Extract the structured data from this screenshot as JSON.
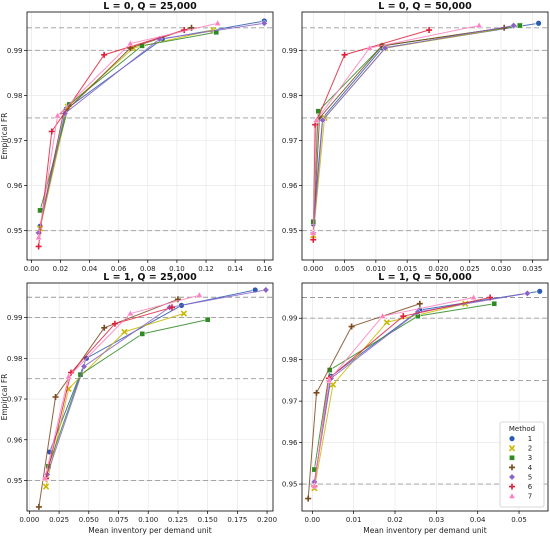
{
  "colors": {
    "1": "#2b5bb0",
    "2": "#c9b800",
    "3": "#2e8b22",
    "4": "#7a4a1e",
    "5": "#8a63c8",
    "6": "#e0203a",
    "7": "#ff7fbf"
  },
  "markers": {
    "1": "circle",
    "2": "x",
    "3": "square",
    "4": "plus",
    "5": "diamond",
    "6": "plus",
    "7": "triangle"
  },
  "legend": {
    "title": "Method",
    "placement": "lower-right",
    "entries": [
      "1",
      "2",
      "3",
      "4",
      "5",
      "6",
      "7"
    ]
  },
  "chart_data": [
    {
      "type": "line",
      "title": "L = 0, Q = 25,000",
      "xlabel": "",
      "ylabel": "Empirical FR",
      "xlim": [
        -0.003,
        0.166
      ],
      "ylim": [
        0.9435,
        0.9985
      ],
      "xticks": [
        0.0,
        0.02,
        0.04,
        0.06,
        0.08,
        0.1,
        0.12,
        0.14,
        0.16
      ],
      "xtick_labels": [
        "0.00",
        "0.02",
        "0.04",
        "0.06",
        "0.08",
        "0.10",
        "0.12",
        "0.14",
        "0.16"
      ],
      "yticks": [
        0.95,
        0.96,
        0.97,
        0.98,
        0.99
      ],
      "ytick_labels": [
        "0.95",
        "0.96",
        "0.97",
        "0.98",
        "0.99"
      ],
      "hlines": [
        0.95,
        0.975,
        0.99,
        0.995
      ],
      "grid": true,
      "series": [
        {
          "name": "1",
          "x": [
            0.006,
            0.024,
            0.09,
            0.16
          ],
          "y": [
            0.951,
            0.977,
            0.9925,
            0.9965
          ]
        },
        {
          "name": "2",
          "x": [
            0.006,
            0.025,
            0.07,
            0.125
          ],
          "y": [
            0.9505,
            0.9775,
            0.9905,
            0.9945
          ]
        },
        {
          "name": "3",
          "x": [
            0.006,
            0.026,
            0.076,
            0.127
          ],
          "y": [
            0.9545,
            0.978,
            0.991,
            0.994
          ]
        },
        {
          "name": "4",
          "x": [
            0.005,
            0.022,
            0.068,
            0.11
          ],
          "y": [
            0.9495,
            0.976,
            0.9905,
            0.995
          ]
        },
        {
          "name": "5",
          "x": [
            0.005,
            0.023,
            0.088,
            0.16
          ],
          "y": [
            0.9495,
            0.976,
            0.9925,
            0.996
          ]
        },
        {
          "name": "6",
          "x": [
            0.005,
            0.014,
            0.05,
            0.105
          ],
          "y": [
            0.9465,
            0.972,
            0.989,
            0.9945
          ]
        },
        {
          "name": "7",
          "x": [
            0.005,
            0.018,
            0.068,
            0.128
          ],
          "y": [
            0.9485,
            0.9755,
            0.9915,
            0.996
          ]
        }
      ]
    },
    {
      "type": "line",
      "title": "L = 0, Q = 50,000",
      "xlabel": "",
      "ylabel": "",
      "xlim": [
        -0.0018,
        0.0375
      ],
      "ylim": [
        0.9435,
        0.9985
      ],
      "xticks": [
        0.0,
        0.005,
        0.01,
        0.015,
        0.02,
        0.025,
        0.03,
        0.035
      ],
      "xtick_labels": [
        "0.000",
        "0.005",
        "0.010",
        "0.015",
        "0.020",
        "0.025",
        "0.030",
        "0.035"
      ],
      "yticks": [
        0.95,
        0.96,
        0.97,
        0.98,
        0.99
      ],
      "ytick_labels": [
        "0.95",
        "0.96",
        "0.97",
        "0.98",
        "0.99"
      ],
      "hlines": [
        0.95,
        0.975,
        0.99,
        0.995
      ],
      "grid": true,
      "series": [
        {
          "name": "1",
          "x": [
            0.0,
            0.0015,
            0.011,
            0.036
          ],
          "y": [
            0.9515,
            0.975,
            0.9905,
            0.996
          ]
        },
        {
          "name": "2",
          "x": [
            0.0,
            0.0018,
            0.0115,
            0.033
          ],
          "y": [
            0.949,
            0.975,
            0.9905,
            0.9955
          ]
        },
        {
          "name": "3",
          "x": [
            0.0,
            0.0008,
            0.011,
            0.033
          ],
          "y": [
            0.952,
            0.9765,
            0.991,
            0.9955
          ]
        },
        {
          "name": "4",
          "x": [
            0.0,
            0.001,
            0.011,
            0.0305
          ],
          "y": [
            0.9495,
            0.975,
            0.991,
            0.995
          ]
        },
        {
          "name": "5",
          "x": [
            0.0,
            0.0015,
            0.0115,
            0.032
          ],
          "y": [
            0.9495,
            0.9745,
            0.9905,
            0.9955
          ]
        },
        {
          "name": "6",
          "x": [
            0.0,
            0.0003,
            0.005,
            0.0185
          ],
          "y": [
            0.948,
            0.9735,
            0.989,
            0.9945
          ]
        },
        {
          "name": "7",
          "x": [
            0.0,
            0.0005,
            0.009,
            0.0265
          ],
          "y": [
            0.9495,
            0.9745,
            0.9905,
            0.9955
          ]
        }
      ]
    },
    {
      "type": "line",
      "title": "L = 1, Q = 25,000",
      "xlabel": "Mean inventory per demand unit",
      "ylabel": "Empirical FR",
      "xlim": [
        -0.002,
        0.205
      ],
      "ylim": [
        0.9425,
        0.9985
      ],
      "xticks": [
        0.0,
        0.025,
        0.05,
        0.075,
        0.1,
        0.125,
        0.15,
        0.175,
        0.2
      ],
      "xtick_labels": [
        "0.000",
        "0.025",
        "0.050",
        "0.075",
        "0.100",
        "0.125",
        "0.150",
        "0.175",
        "0.200"
      ],
      "yticks": [
        0.95,
        0.96,
        0.97,
        0.98,
        0.99
      ],
      "ytick_labels": [
        "0.95",
        "0.96",
        "0.97",
        "0.98",
        "0.99"
      ],
      "hlines": [
        0.95,
        0.975,
        0.99,
        0.995
      ],
      "grid": true,
      "series": [
        {
          "name": "1",
          "x": [
            0.017,
            0.048,
            0.128,
            0.19
          ],
          "y": [
            0.957,
            0.98,
            0.993,
            0.9968
          ]
        },
        {
          "name": "2",
          "x": [
            0.014,
            0.033,
            0.08,
            0.13
          ],
          "y": [
            0.9485,
            0.9725,
            0.9865,
            0.991
          ]
        },
        {
          "name": "3",
          "x": [
            0.016,
            0.043,
            0.095,
            0.15
          ],
          "y": [
            0.9535,
            0.976,
            0.986,
            0.9895
          ]
        },
        {
          "name": "4",
          "x": [
            0.008,
            0.022,
            0.063,
            0.125
          ],
          "y": [
            0.9435,
            0.9705,
            0.9875,
            0.9945
          ]
        },
        {
          "name": "5",
          "x": [
            0.015,
            0.046,
            0.118,
            0.199
          ],
          "y": [
            0.9515,
            0.978,
            0.9925,
            0.9968
          ]
        },
        {
          "name": "6",
          "x": [
            0.014,
            0.035,
            0.072,
            0.12
          ],
          "y": [
            0.9505,
            0.9765,
            0.9885,
            0.9925
          ]
        },
        {
          "name": "7",
          "x": [
            0.013,
            0.033,
            0.085,
            0.143
          ],
          "y": [
            0.9505,
            0.9755,
            0.991,
            0.9955
          ]
        }
      ]
    },
    {
      "type": "line",
      "title": "L = 1, Q = 50,000",
      "xlabel": "Mean inventory per demand unit",
      "ylabel": "",
      "xlim": [
        -0.0025,
        0.057
      ],
      "ylim": [
        0.9435,
        0.9985
      ],
      "xticks": [
        0.0,
        0.01,
        0.02,
        0.03,
        0.04,
        0.05
      ],
      "xtick_labels": [
        "0.00",
        "0.01",
        "0.02",
        "0.03",
        "0.04",
        "0.05"
      ],
      "yticks": [
        0.95,
        0.96,
        0.97,
        0.98,
        0.99
      ],
      "ytick_labels": [
        "0.95",
        "0.96",
        "0.97",
        "0.98",
        "0.99"
      ],
      "hlines": [
        0.95,
        0.975,
        0.99,
        0.995
      ],
      "grid": true,
      "series": [
        {
          "name": "1",
          "x": [
            0.0005,
            0.0045,
            0.026,
            0.055
          ],
          "y": [
            0.9505,
            0.976,
            0.992,
            0.9965
          ]
        },
        {
          "name": "2",
          "x": [
            0.0005,
            0.005,
            0.018,
            0.037
          ],
          "y": [
            0.949,
            0.974,
            0.989,
            0.9935
          ]
        },
        {
          "name": "3",
          "x": [
            0.0005,
            0.0042,
            0.0255,
            0.044
          ],
          "y": [
            0.9535,
            0.9775,
            0.9905,
            0.9935
          ]
        },
        {
          "name": "4",
          "x": [
            -0.001,
            0.001,
            0.0095,
            0.026
          ],
          "y": [
            0.9465,
            0.972,
            0.988,
            0.9935
          ]
        },
        {
          "name": "5",
          "x": [
            0.0005,
            0.0045,
            0.0255,
            0.052
          ],
          "y": [
            0.9505,
            0.9755,
            0.9915,
            0.996
          ]
        },
        {
          "name": "6",
          "x": [
            0.0005,
            0.004,
            0.022,
            0.043
          ],
          "y": [
            0.9495,
            0.9755,
            0.9905,
            0.995
          ]
        },
        {
          "name": "7",
          "x": [
            0.0005,
            0.004,
            0.017,
            0.039
          ],
          "y": [
            0.9495,
            0.975,
            0.9905,
            0.995
          ]
        }
      ]
    }
  ]
}
